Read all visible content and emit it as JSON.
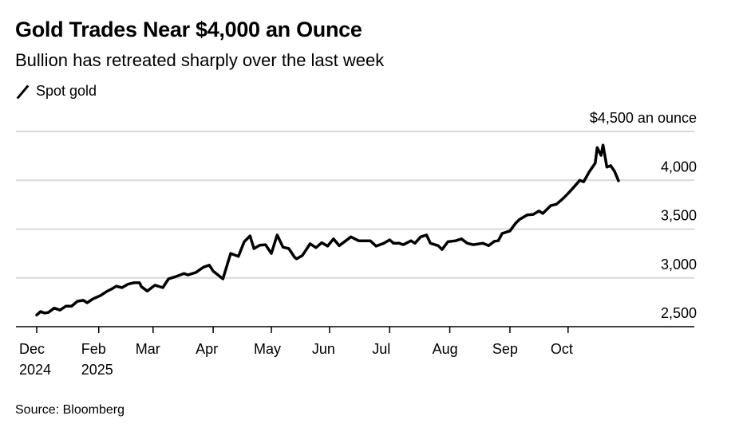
{
  "header": {
    "title": "Gold Trades Near $4,000 an Ounce",
    "subtitle": "Bullion has retreated sharply over the last week"
  },
  "footer": {
    "source": "Source: Bloomberg"
  },
  "chart_data": {
    "type": "line",
    "title": "Gold Trades Near $4,000 an Ounce",
    "subtitle": "Bullion has retreated sharply over the last week",
    "xlabel": "",
    "ylabel": "$ an ounce",
    "x_units": "days since first axis tick",
    "xlim": [
      -11,
      339
    ],
    "ylim": [
      2500,
      4500
    ],
    "grid": true,
    "legend_placement": "top-left",
    "y_ticks": [
      {
        "value": 2500,
        "label": "2,500"
      },
      {
        "value": 3000,
        "label": "3,000"
      },
      {
        "value": 3500,
        "label": "3,500"
      },
      {
        "value": 4000,
        "label": "4,000"
      },
      {
        "value": 4500,
        "label": "$4,500 an ounce"
      }
    ],
    "x_ticks": [
      {
        "value": 0,
        "label": "Dec",
        "sublabel": "2024"
      },
      {
        "value": 32,
        "label": "Feb",
        "sublabel": "2025"
      },
      {
        "value": 60,
        "label": "Mar",
        "sublabel": ""
      },
      {
        "value": 91,
        "label": "Apr",
        "sublabel": ""
      },
      {
        "value": 121,
        "label": "May",
        "sublabel": ""
      },
      {
        "value": 151,
        "label": "Jun",
        "sublabel": ""
      },
      {
        "value": 182,
        "label": "Jul",
        "sublabel": ""
      },
      {
        "value": 213,
        "label": "Aug",
        "sublabel": ""
      },
      {
        "value": 244,
        "label": "Sep",
        "sublabel": ""
      },
      {
        "value": 274,
        "label": "Oct",
        "sublabel": ""
      }
    ],
    "series": [
      {
        "name": "Spot gold",
        "color": "#000000",
        "x": [
          0,
          2,
          4,
          6,
          9,
          12,
          15,
          18,
          21,
          24,
          26,
          29,
          33,
          36,
          39,
          41,
          44,
          47,
          50,
          53,
          54,
          57,
          61,
          65,
          68,
          72,
          76,
          78,
          82,
          86,
          89,
          91,
          96,
          100,
          104,
          107,
          110,
          112,
          115,
          118,
          121,
          124,
          127,
          130,
          133,
          134,
          137,
          141,
          144,
          147,
          150,
          153,
          156,
          162,
          166,
          172,
          175,
          179,
          182,
          184,
          187,
          189,
          193,
          195,
          198,
          201,
          203,
          207,
          209,
          212,
          216,
          219,
          222,
          225,
          230,
          233,
          236,
          238,
          240,
          244,
          247,
          249,
          253,
          256,
          259,
          261,
          265,
          268,
          271,
          274,
          277,
          280,
          282,
          285,
          288,
          289,
          291,
          292,
          294,
          296,
          298,
          300
        ],
        "values": [
          2620,
          2655,
          2640,
          2645,
          2690,
          2670,
          2710,
          2710,
          2760,
          2770,
          2745,
          2785,
          2820,
          2860,
          2890,
          2915,
          2900,
          2935,
          2950,
          2950,
          2910,
          2865,
          2925,
          2900,
          2990,
          3015,
          3045,
          3030,
          3055,
          3110,
          3130,
          3070,
          2990,
          3250,
          3220,
          3370,
          3430,
          3300,
          3335,
          3340,
          3250,
          3440,
          3315,
          3300,
          3210,
          3195,
          3230,
          3350,
          3310,
          3360,
          3325,
          3400,
          3330,
          3420,
          3380,
          3380,
          3325,
          3355,
          3390,
          3355,
          3355,
          3340,
          3380,
          3355,
          3420,
          3440,
          3355,
          3330,
          3290,
          3370,
          3380,
          3400,
          3355,
          3340,
          3355,
          3330,
          3375,
          3380,
          3455,
          3480,
          3560,
          3600,
          3645,
          3650,
          3685,
          3660,
          3740,
          3755,
          3805,
          3865,
          3930,
          4000,
          3985,
          4090,
          4175,
          4335,
          4255,
          4360,
          4135,
          4150,
          4090,
          3995
        ]
      }
    ]
  }
}
